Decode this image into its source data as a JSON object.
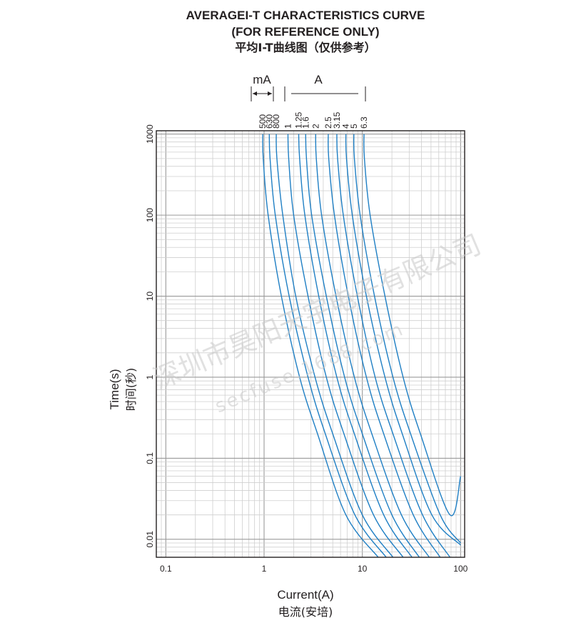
{
  "chart_data": {
    "type": "line",
    "title": "AVERAGEI-T CHARACTERISTICS CURVE",
    "subtitle": "(FOR REFERENCE ONLY)",
    "title_cn": "平均I-T曲线图（仅供参考）",
    "xlabel": "Current(A)",
    "xlabel_cn": "电流(安培)",
    "ylabel": "Time(s)",
    "ylabel_cn": "时间(秒)",
    "x_scale": "log",
    "y_scale": "log",
    "xlim": [
      0.08,
      110
    ],
    "ylim": [
      0.006,
      1100
    ],
    "x_ticks": [
      0.1,
      1,
      10,
      100
    ],
    "x_tick_labels": [
      "0.1",
      "1",
      "10",
      "100"
    ],
    "y_ticks": [
      0.01,
      0.1,
      1,
      10,
      100,
      1000
    ],
    "y_tick_labels": [
      "0.01",
      "0.1",
      "1",
      "10",
      "100",
      "1000"
    ],
    "grid": true,
    "series_color": "#1f7fc4",
    "unit_groups": [
      {
        "label": "mA",
        "ratings": [
          "500",
          "630",
          "800"
        ]
      },
      {
        "label": "A",
        "ratings": [
          "1",
          "1.25",
          "1.6",
          "2",
          "2.5",
          "3.15",
          "4",
          "5",
          "6.3"
        ]
      }
    ],
    "series": [
      {
        "name": "500",
        "x": [
          0.97,
          0.98,
          1.1,
          1.5,
          2.3,
          3.5,
          6.8,
          14.5
        ],
        "y": [
          1000,
          500,
          100,
          10,
          1,
          0.2,
          0.02,
          0.006
        ]
      },
      {
        "name": "630",
        "x": [
          1.13,
          1.15,
          1.3,
          1.8,
          2.8,
          4.2,
          8.4,
          17.5
        ],
        "y": [
          1000,
          500,
          100,
          10,
          1,
          0.2,
          0.02,
          0.006
        ]
      },
      {
        "name": "800",
        "x": [
          1.33,
          1.35,
          1.55,
          2.1,
          3.3,
          5.0,
          10.0,
          20.5
        ],
        "y": [
          1000,
          500,
          100,
          10,
          1,
          0.2,
          0.02,
          0.006
        ]
      },
      {
        "name": "1",
        "x": [
          1.75,
          1.78,
          2.0,
          2.8,
          4.3,
          6.5,
          13.0,
          26.0
        ],
        "y": [
          1000,
          500,
          100,
          10,
          1,
          0.2,
          0.02,
          0.006
        ]
      },
      {
        "name": "1.25",
        "x": [
          2.25,
          2.3,
          2.6,
          3.6,
          5.5,
          8.3,
          16.5,
          32.0
        ],
        "y": [
          1000,
          500,
          100,
          10,
          1,
          0.2,
          0.02,
          0.006
        ]
      },
      {
        "name": "1.6",
        "x": [
          2.65,
          2.7,
          3.05,
          4.3,
          6.6,
          10.0,
          20.0,
          38.0
        ],
        "y": [
          1000,
          500,
          100,
          10,
          1,
          0.2,
          0.02,
          0.006
        ]
      },
      {
        "name": "2",
        "x": [
          3.35,
          3.4,
          3.85,
          5.4,
          8.3,
          12.5,
          25.0,
          48.0
        ],
        "y": [
          1000,
          500,
          100,
          10,
          1,
          0.2,
          0.02,
          0.006
        ]
      },
      {
        "name": "2.5",
        "x": [
          4.5,
          4.55,
          5.2,
          7.2,
          11.0,
          16.5,
          33.0,
          62.0
        ],
        "y": [
          1000,
          500,
          100,
          10,
          1,
          0.2,
          0.02,
          0.006
        ]
      },
      {
        "name": "3.15",
        "x": [
          5.5,
          5.6,
          6.4,
          8.9,
          13.5,
          20.5,
          41.0,
          78.0
        ],
        "y": [
          1000,
          500,
          100,
          10,
          1,
          0.2,
          0.02,
          0.006
        ]
      },
      {
        "name": "4",
        "x": [
          6.8,
          6.9,
          7.9,
          11.0,
          17.0,
          25.5,
          51.0,
          100.0
        ],
        "y": [
          1000,
          500,
          100,
          10,
          1,
          0.2,
          0.02,
          0.0085
        ]
      },
      {
        "name": "5",
        "x": [
          8.2,
          8.3,
          9.5,
          13.3,
          20.5,
          31.0,
          62.0,
          100.0
        ],
        "y": [
          1000,
          500,
          100,
          10,
          1,
          0.2,
          0.02,
          0.009
        ]
      },
      {
        "name": "6.3",
        "x": [
          10.4,
          10.5,
          12.0,
          17.0,
          26.0,
          39.0,
          78.0,
          100.0
        ],
        "y": [
          1000,
          500,
          100,
          10,
          1,
          0.2,
          0.02,
          0.06
        ]
      }
    ]
  },
  "watermark": {
    "company": "深圳市昊阳天宇电子有限公司",
    "website": "secfuse.1688.com"
  }
}
